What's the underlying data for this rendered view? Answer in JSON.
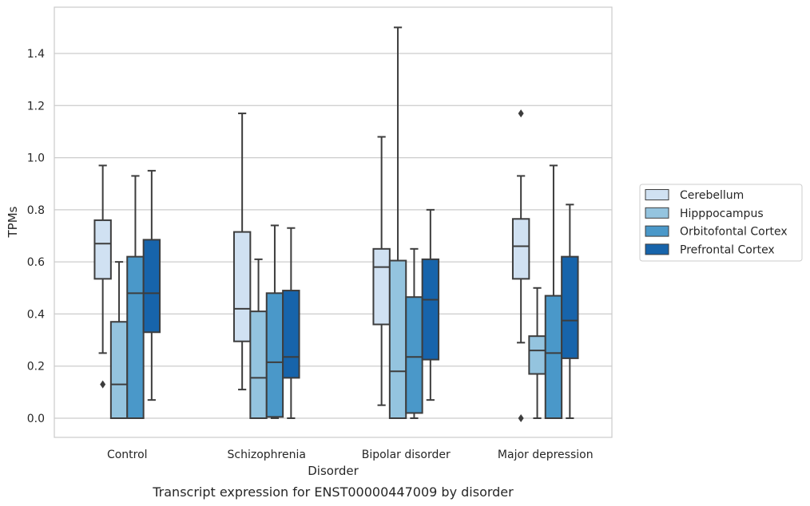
{
  "chart_data": {
    "type": "box",
    "xlabel": "Disorder",
    "ylabel": "TPMs",
    "caption": "Transcript expression for ENST00000447009 by disorder",
    "ylim": [
      -0.07,
      1.58
    ],
    "yticks": [
      0.0,
      0.2,
      0.4,
      0.6,
      0.8,
      1.0,
      1.2,
      1.4
    ],
    "ytick_labels": [
      "0.0",
      "0.2",
      "0.4",
      "0.6",
      "0.8",
      "1.0",
      "1.2",
      "1.4"
    ],
    "grid": "horizontal",
    "legend_position": "right",
    "categories": [
      "Control",
      "Schizophrenia",
      "Bipolar disorder",
      "Major depression"
    ],
    "series": [
      {
        "name": "Cerebellum",
        "color": "#d0e1f2",
        "boxes": [
          {
            "whisker_low": 0.25,
            "q1": 0.535,
            "median": 0.67,
            "q3": 0.76,
            "whisker_high": 0.97,
            "outliers": [
              0.13
            ]
          },
          {
            "whisker_low": 0.11,
            "q1": 0.295,
            "median": 0.42,
            "q3": 0.715,
            "whisker_high": 1.17,
            "outliers": []
          },
          {
            "whisker_low": 0.05,
            "q1": 0.36,
            "median": 0.58,
            "q3": 0.65,
            "whisker_high": 1.08,
            "outliers": []
          },
          {
            "whisker_low": 0.29,
            "q1": 0.535,
            "median": 0.66,
            "q3": 0.765,
            "whisker_high": 0.93,
            "outliers": [
              1.17,
              0.0
            ]
          }
        ]
      },
      {
        "name": "Hipppocampus",
        "color": "#94c4df",
        "boxes": [
          {
            "whisker_low": 0.0,
            "q1": 0.0,
            "median": 0.13,
            "q3": 0.37,
            "whisker_high": 0.6,
            "outliers": []
          },
          {
            "whisker_low": 0.0,
            "q1": 0.0,
            "median": 0.155,
            "q3": 0.41,
            "whisker_high": 0.61,
            "outliers": []
          },
          {
            "whisker_low": 0.0,
            "q1": 0.0,
            "median": 0.18,
            "q3": 0.605,
            "whisker_high": 1.5,
            "outliers": []
          },
          {
            "whisker_low": 0.0,
            "q1": 0.17,
            "median": 0.26,
            "q3": 0.315,
            "whisker_high": 0.5,
            "outliers": []
          }
        ]
      },
      {
        "name": "Orbitofontal Cortex",
        "color": "#4a98c9",
        "boxes": [
          {
            "whisker_low": 0.0,
            "q1": 0.0,
            "median": 0.48,
            "q3": 0.62,
            "whisker_high": 0.93,
            "outliers": []
          },
          {
            "whisker_low": 0.0,
            "q1": 0.005,
            "median": 0.215,
            "q3": 0.48,
            "whisker_high": 0.74,
            "outliers": []
          },
          {
            "whisker_low": 0.0,
            "q1": 0.02,
            "median": 0.235,
            "q3": 0.465,
            "whisker_high": 0.65,
            "outliers": []
          },
          {
            "whisker_low": 0.0,
            "q1": 0.0,
            "median": 0.25,
            "q3": 0.47,
            "whisker_high": 0.97,
            "outliers": []
          }
        ]
      },
      {
        "name": "Prefrontal Cortex",
        "color": "#1764ab",
        "boxes": [
          {
            "whisker_low": 0.07,
            "q1": 0.33,
            "median": 0.48,
            "q3": 0.685,
            "whisker_high": 0.95,
            "outliers": []
          },
          {
            "whisker_low": 0.0,
            "q1": 0.155,
            "median": 0.235,
            "q3": 0.49,
            "whisker_high": 0.73,
            "outliers": []
          },
          {
            "whisker_low": 0.07,
            "q1": 0.225,
            "median": 0.455,
            "q3": 0.61,
            "whisker_high": 0.8,
            "outliers": []
          },
          {
            "whisker_low": 0.0,
            "q1": 0.23,
            "median": 0.375,
            "q3": 0.62,
            "whisker_high": 0.82,
            "outliers": []
          }
        ]
      }
    ]
  }
}
